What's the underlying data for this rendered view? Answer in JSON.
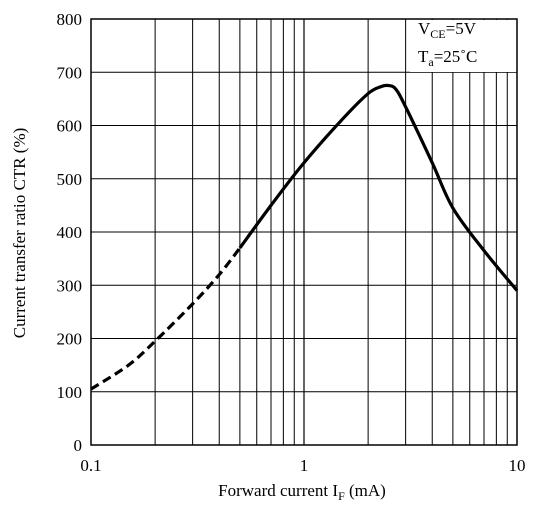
{
  "chart_data": {
    "type": "line",
    "xlabel": "Forward current I",
    "xlabel_sub": "F",
    "xlabel_unit": " (mA)",
    "ylabel": "Current transfer ratio CTR (%)",
    "xscale": "log",
    "xlim": [
      0.1,
      10
    ],
    "ylim": [
      0,
      800
    ],
    "grid": true,
    "x_tick_labels": [
      "0.1",
      "1",
      "10"
    ],
    "y_ticks": [
      0,
      100,
      200,
      300,
      400,
      500,
      600,
      700,
      800
    ],
    "y_tick_labels": [
      "0",
      "100",
      "200",
      "300",
      "400",
      "500",
      "600",
      "700",
      "800"
    ],
    "conditions": {
      "line1_main": "V",
      "line1_sub": "CE",
      "line1_rest": "=5V",
      "line2_main": "T",
      "line2_sub": "a",
      "line2_rest": "=25˚C"
    },
    "series": [
      {
        "style": "dashed",
        "color": "#000000",
        "x": [
          0.1,
          0.15,
          0.2,
          0.3,
          0.4,
          0.5
        ],
        "y": [
          105,
          150,
          195,
          265,
          320,
          370
        ]
      },
      {
        "style": "solid",
        "color": "#000000",
        "x": [
          0.5,
          0.7,
          1.0,
          1.5,
          2.0,
          2.3,
          2.5,
          2.7,
          3.0,
          4.0,
          5.0,
          7.0,
          10.0
        ],
        "y": [
          370,
          450,
          530,
          610,
          660,
          673,
          675,
          668,
          635,
          530,
          445,
          365,
          290
        ]
      }
    ]
  }
}
